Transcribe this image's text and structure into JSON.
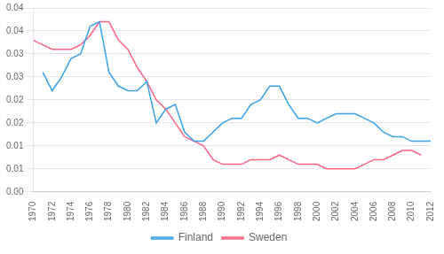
{
  "chart_data": {
    "type": "line",
    "x": [
      1970,
      1971,
      1972,
      1973,
      1974,
      1975,
      1976,
      1977,
      1978,
      1979,
      1980,
      1981,
      1982,
      1983,
      1984,
      1985,
      1986,
      1987,
      1988,
      1989,
      1990,
      1991,
      1992,
      1993,
      1994,
      1995,
      1996,
      1997,
      1998,
      1999,
      2000,
      2001,
      2002,
      2003,
      2004,
      2005,
      2006,
      2007,
      2008,
      2009,
      2010,
      2011,
      2012
    ],
    "series": [
      {
        "name": "Finland",
        "values": [
          null,
          0.026,
          0.022,
          0.025,
          0.029,
          0.03,
          0.036,
          0.037,
          0.026,
          0.023,
          0.022,
          0.022,
          0.024,
          0.015,
          0.018,
          0.019,
          0.013,
          0.011,
          0.011,
          0.013,
          0.015,
          0.016,
          0.016,
          0.019,
          0.02,
          0.023,
          0.023,
          0.019,
          0.016,
          0.016,
          0.015,
          0.016,
          0.017,
          0.017,
          0.017,
          0.016,
          0.015,
          0.013,
          0.012,
          0.012,
          0.011,
          0.011,
          0.011
        ]
      },
      {
        "name": "Sweden",
        "values": [
          0.033,
          0.032,
          0.031,
          0.031,
          0.031,
          0.032,
          0.034,
          0.037,
          0.037,
          0.033,
          0.031,
          0.027,
          0.024,
          0.02,
          0.018,
          0.015,
          0.012,
          0.011,
          0.01,
          0.007,
          0.006,
          0.006,
          0.006,
          0.007,
          0.007,
          0.007,
          0.008,
          0.007,
          0.006,
          0.006,
          0.006,
          0.005,
          0.005,
          0.005,
          0.005,
          0.006,
          0.007,
          0.007,
          0.008,
          0.009,
          0.009,
          0.008,
          null
        ]
      }
    ],
    "xlim": [
      1970,
      2012
    ],
    "xticks": [
      1970,
      1972,
      1974,
      1976,
      1978,
      1980,
      1982,
      1984,
      1986,
      1988,
      1990,
      1992,
      1994,
      1996,
      1998,
      2000,
      2002,
      2004,
      2006,
      2008,
      2010,
      2012
    ],
    "ylim": [
      0.0,
      0.04
    ],
    "yticks": [
      {
        "value": 0.0,
        "label": "0.00"
      },
      {
        "value": 0.005,
        "label": "0.01"
      },
      {
        "value": 0.01,
        "label": "0.01"
      },
      {
        "value": 0.015,
        "label": "0.02"
      },
      {
        "value": 0.02,
        "label": "0.02"
      },
      {
        "value": 0.025,
        "label": "0.03"
      },
      {
        "value": 0.03,
        "label": "0.03"
      },
      {
        "value": 0.035,
        "label": "0.04"
      },
      {
        "value": 0.04,
        "label": "0.04"
      }
    ],
    "grid": "y",
    "legend": "bottom"
  }
}
